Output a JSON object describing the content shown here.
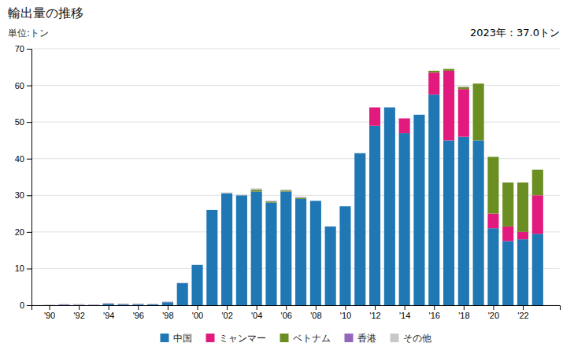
{
  "chart_data": {
    "type": "bar",
    "stacked": true,
    "title": "輸出量の推移",
    "subtitle": "単位:トン",
    "annotation": "2023年：37.0トン",
    "x": [
      1990,
      1991,
      1992,
      1993,
      1994,
      1995,
      1996,
      1997,
      1998,
      1999,
      2000,
      2001,
      2002,
      2003,
      2004,
      2005,
      2006,
      2007,
      2008,
      2009,
      2010,
      2011,
      2012,
      2013,
      2014,
      2015,
      2016,
      2017,
      2018,
      2019,
      2020,
      2021,
      2022,
      2023
    ],
    "series": [
      {
        "name": "中国",
        "color": "#1f77b4",
        "values": [
          0.05,
          0.05,
          0.05,
          0.05,
          0.4,
          0.2,
          0.2,
          0.2,
          0.8,
          6.0,
          11.0,
          26.0,
          30.5,
          30.0,
          31.0,
          28.0,
          31.0,
          29.0,
          28.5,
          21.5,
          27.0,
          41.5,
          49.0,
          54.0,
          47.0,
          52.0,
          57.5,
          45.0,
          46.0,
          45.0,
          21.0,
          17.5,
          18.0,
          19.5
        ]
      },
      {
        "name": "ミャンマー",
        "color": "#e31a7e",
        "values": [
          0.0,
          0.0,
          0.0,
          0.0,
          0.0,
          0.0,
          0.0,
          0.0,
          0.0,
          0.0,
          0.0,
          0.0,
          0.0,
          0.0,
          0.0,
          0.0,
          0.0,
          0.0,
          0.0,
          0.0,
          0.0,
          0.0,
          5.0,
          0.0,
          4.0,
          0.0,
          6.0,
          19.0,
          13.0,
          0.0,
          4.0,
          4.0,
          2.0,
          10.5
        ]
      },
      {
        "name": "ベトナム",
        "color": "#6b8e23",
        "values": [
          0.0,
          0.0,
          0.0,
          0.0,
          0.0,
          0.0,
          0.0,
          0.0,
          0.0,
          0.0,
          0.0,
          0.0,
          0.0,
          0.0,
          0.5,
          0.3,
          0.3,
          0.3,
          0.0,
          0.0,
          0.0,
          0.0,
          0.0,
          0.0,
          0.0,
          0.0,
          0.5,
          0.5,
          0.5,
          15.5,
          15.5,
          12.0,
          13.5,
          7.0
        ]
      },
      {
        "name": "香港",
        "color": "#9467bd",
        "values": [
          0.0,
          0.2,
          0.1,
          0.1,
          0.1,
          0.1,
          0.1,
          0.05,
          0.1,
          0.05,
          0.0,
          0.0,
          0.0,
          0.0,
          0.1,
          0.1,
          0.1,
          0.1,
          0.0,
          0.0,
          0.0,
          0.0,
          0.0,
          0.0,
          0.0,
          0.0,
          0.0,
          0.0,
          0.0,
          0.0,
          0.0,
          0.0,
          0.0,
          0.0
        ]
      },
      {
        "name": "その他",
        "color": "#c8c8c8",
        "values": [
          0.1,
          0.1,
          0.2,
          0.1,
          0.1,
          0.2,
          0.2,
          0.2,
          0.2,
          0.1,
          0.0,
          0.0,
          0.3,
          0.2,
          0.3,
          0.2,
          0.2,
          0.2,
          0.0,
          0.0,
          0.0,
          0.0,
          0.0,
          0.0,
          0.0,
          0.0,
          0.0,
          0.0,
          0.3,
          0.0,
          0.0,
          0.0,
          0.0,
          0.0
        ]
      }
    ],
    "xlim": [
      1988.8,
      2024.5
    ],
    "xticks": [
      {
        "value": 1990,
        "label": "'90"
      },
      {
        "value": 1992,
        "label": "'92"
      },
      {
        "value": 1994,
        "label": "'94"
      },
      {
        "value": 1996,
        "label": "'96"
      },
      {
        "value": 1998,
        "label": "'98"
      },
      {
        "value": 2000,
        "label": "'00"
      },
      {
        "value": 2002,
        "label": "'02"
      },
      {
        "value": 2004,
        "label": "'04"
      },
      {
        "value": 2006,
        "label": "'06"
      },
      {
        "value": 2008,
        "label": "'08"
      },
      {
        "value": 2010,
        "label": "'10"
      },
      {
        "value": 2012,
        "label": "'12"
      },
      {
        "value": 2014,
        "label": "'14"
      },
      {
        "value": 2016,
        "label": "'16"
      },
      {
        "value": 2018,
        "label": "'18"
      },
      {
        "value": 2020,
        "label": "'20"
      },
      {
        "value": 2022,
        "label": "'22"
      }
    ],
    "ylim": [
      0,
      70
    ],
    "yticks": [
      0,
      10,
      20,
      30,
      40,
      50,
      60,
      70
    ],
    "grid": true,
    "legend": "bottom"
  }
}
